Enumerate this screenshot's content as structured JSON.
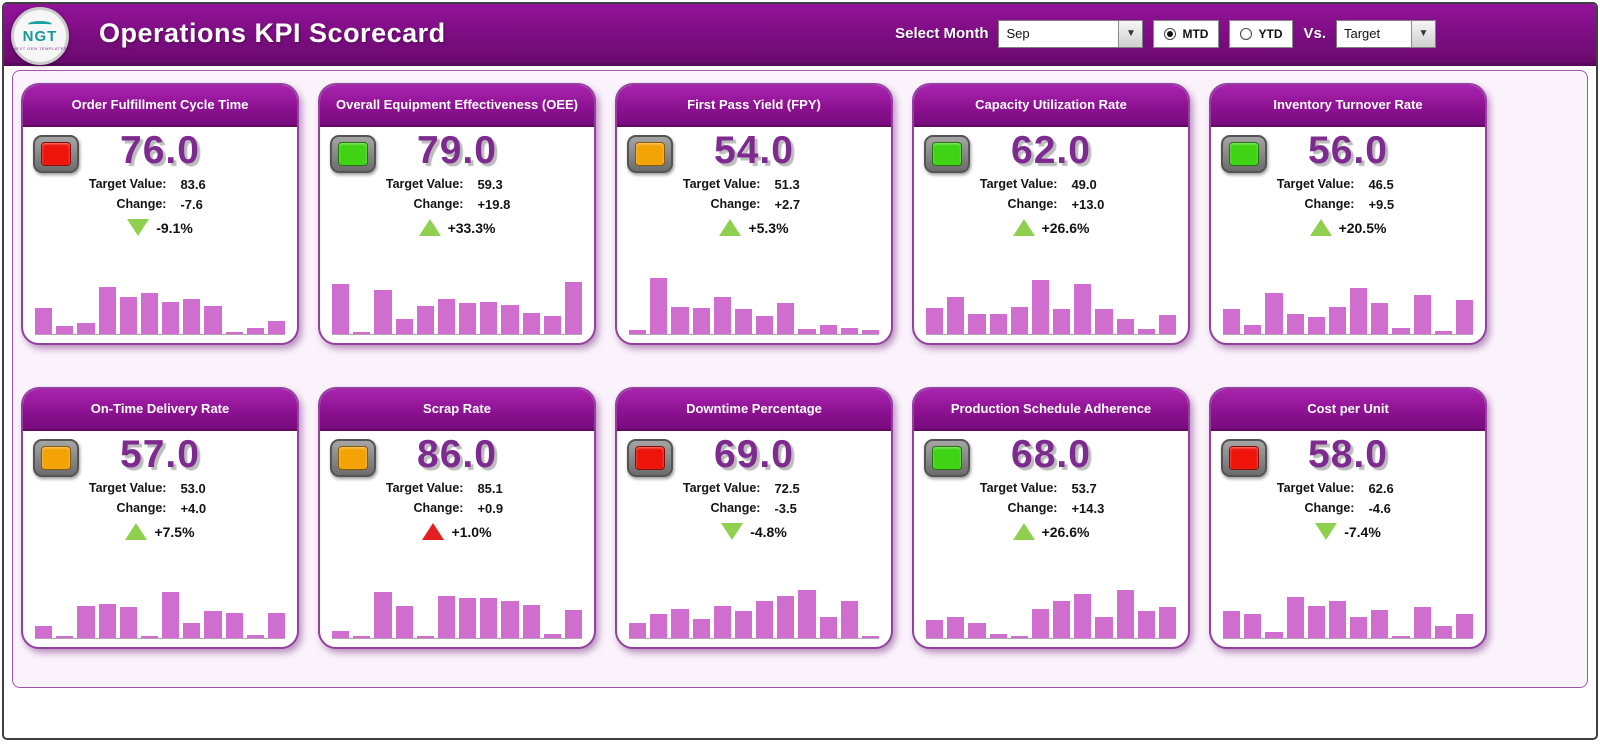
{
  "header": {
    "title": "Operations KPI Scorecard",
    "logo_text": "NGT",
    "logo_subtext": "NEXT GEN TEMPLATES",
    "select_month_label": "Select Month",
    "month_value": "Sep",
    "mtd_label": "MTD",
    "ytd_label": "YTD",
    "period_selected": "MTD",
    "vs_label": "Vs.",
    "vs_value": "Target"
  },
  "labels": {
    "target": "Target Value:",
    "change": "Change:"
  },
  "colors": {
    "status": {
      "red": "#ee1409",
      "green": "#3ed313",
      "amber": "#f4a306"
    },
    "trend": {
      "green": "#8fd14f",
      "red": "#e51f1f"
    },
    "bar": "#d06ed0",
    "accent": "#7d2b8f"
  },
  "cards": [
    {
      "title": "Order Fulfillment Cycle Time",
      "value": "76.0",
      "status": "red",
      "target": "83.6",
      "change": "-7.6",
      "trend": {
        "direction": "down",
        "color": "green",
        "pct": "-9.1%"
      },
      "bars": [
        44,
        13,
        18,
        80,
        62,
        70,
        54,
        60,
        48,
        3,
        10,
        22
      ]
    },
    {
      "title": "Overall Equipment Effectiveness (OEE)",
      "value": "79.0",
      "status": "green",
      "target": "59.3",
      "change": "+19.8",
      "trend": {
        "direction": "up",
        "color": "green",
        "pct": "+33.3%"
      },
      "bars": [
        84,
        4,
        74,
        25,
        48,
        60,
        52,
        55,
        50,
        35,
        30,
        88
      ]
    },
    {
      "title": "First Pass Yield (FPY)",
      "value": "54.0",
      "status": "amber",
      "target": "51.3",
      "change": "+2.7",
      "trend": {
        "direction": "up",
        "color": "green",
        "pct": "+5.3%"
      },
      "bars": [
        6,
        95,
        46,
        44,
        62,
        42,
        30,
        52,
        8,
        16,
        10,
        6
      ]
    },
    {
      "title": "Capacity Utilization Rate",
      "value": "62.0",
      "status": "green",
      "target": "49.0",
      "change": "+13.0",
      "trend": {
        "direction": "up",
        "color": "green",
        "pct": "+26.6%"
      },
      "bars": [
        44,
        62,
        34,
        34,
        45,
        92,
        42,
        85,
        42,
        25,
        8,
        32
      ]
    },
    {
      "title": "Inventory Turnover Rate",
      "value": "56.0",
      "status": "green",
      "target": "46.5",
      "change": "+9.5",
      "trend": {
        "direction": "up",
        "color": "green",
        "pct": "+20.5%"
      },
      "bars": [
        42,
        15,
        70,
        34,
        28,
        45,
        78,
        52,
        10,
        66,
        5,
        58
      ]
    },
    {
      "title": "On-Time Delivery Rate",
      "value": "57.0",
      "status": "amber",
      "target": "53.0",
      "change": "+4.0",
      "trend": {
        "direction": "up",
        "color": "green",
        "pct": "+7.5%"
      },
      "bars": [
        20,
        4,
        55,
        58,
        52,
        4,
        78,
        25,
        45,
        42,
        5,
        42
      ]
    },
    {
      "title": "Scrap Rate",
      "value": "86.0",
      "status": "amber",
      "target": "85.1",
      "change": "+0.9",
      "trend": {
        "direction": "up",
        "color": "red",
        "pct": "+1.0%"
      },
      "bars": [
        12,
        4,
        78,
        55,
        4,
        72,
        68,
        68,
        62,
        56,
        6,
        48
      ]
    },
    {
      "title": "Downtime Percentage",
      "value": "69.0",
      "status": "red",
      "target": "72.5",
      "change": "-3.5",
      "trend": {
        "direction": "down",
        "color": "green",
        "pct": "-4.8%"
      },
      "bars": [
        25,
        40,
        50,
        32,
        55,
        45,
        62,
        72,
        82,
        35,
        62,
        4
      ]
    },
    {
      "title": "Production Schedule Adherence",
      "value": "68.0",
      "status": "green",
      "target": "53.7",
      "change": "+14.3",
      "trend": {
        "direction": "up",
        "color": "green",
        "pct": "+26.6%"
      },
      "bars": [
        30,
        35,
        25,
        6,
        4,
        50,
        62,
        75,
        35,
        82,
        45,
        52
      ]
    },
    {
      "title": "Cost per Unit",
      "value": "58.0",
      "status": "red",
      "target": "62.6",
      "change": "-4.6",
      "trend": {
        "direction": "down",
        "color": "green",
        "pct": "-7.4%"
      },
      "bars": [
        45,
        40,
        10,
        70,
        55,
        62,
        35,
        48,
        4,
        52,
        20,
        40
      ]
    }
  ]
}
